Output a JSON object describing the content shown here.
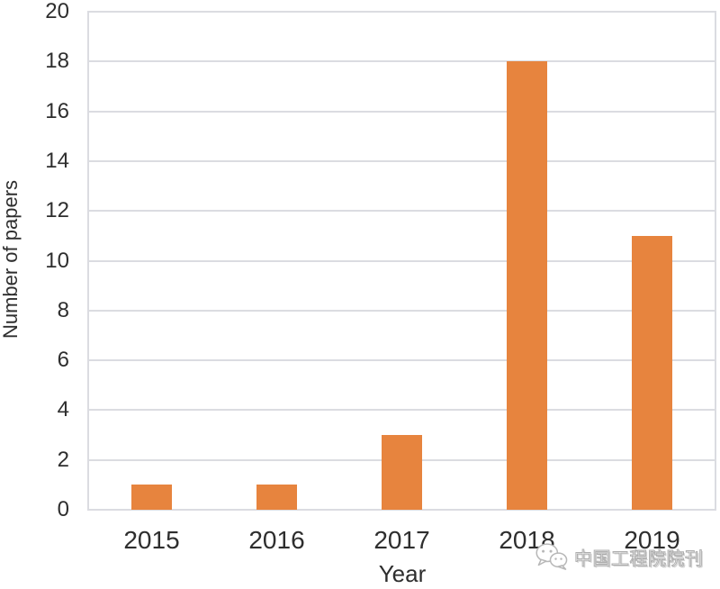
{
  "chart_data": {
    "type": "bar",
    "categories": [
      "2015",
      "2016",
      "2017",
      "2018",
      "2019"
    ],
    "values": [
      1,
      1,
      3,
      18,
      11
    ],
    "xlabel": "Year",
    "ylabel": "Number of papers",
    "ylim": [
      0,
      20
    ],
    "ytick_step": 2,
    "yticks": [
      0,
      2,
      4,
      6,
      8,
      10,
      12,
      14,
      16,
      18,
      20
    ],
    "bar_color": "#E7843E",
    "gridline_color": "#DBDCE1",
    "text_color": "#2E2E2E",
    "grid": true,
    "legend": "none"
  },
  "watermark": {
    "text": "中国工程院院刊",
    "icon": "wechat-icon"
  }
}
